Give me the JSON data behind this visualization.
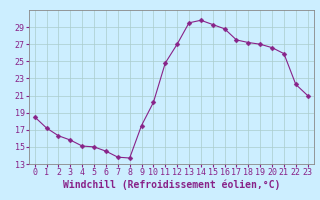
{
  "hours": [
    0,
    1,
    2,
    3,
    4,
    5,
    6,
    7,
    8,
    9,
    10,
    11,
    12,
    13,
    14,
    15,
    16,
    17,
    18,
    19,
    20,
    21,
    22,
    23
  ],
  "values": [
    18.5,
    17.2,
    16.3,
    15.8,
    15.1,
    15.0,
    14.5,
    13.8,
    13.7,
    17.5,
    20.2,
    24.8,
    27.0,
    29.5,
    29.8,
    29.3,
    28.8,
    27.5,
    27.2,
    27.0,
    26.6,
    25.9,
    22.3,
    21.0
  ],
  "line_color": "#882288",
  "marker_color": "#882288",
  "bg_color": "#cceeff",
  "grid_color": "#aacccc",
  "xlabel": "Windchill (Refroidissement éolien,°C)",
  "ylim": [
    13,
    31
  ],
  "yticks": [
    13,
    15,
    17,
    19,
    21,
    23,
    25,
    27,
    29
  ],
  "xticks": [
    0,
    1,
    2,
    3,
    4,
    5,
    6,
    7,
    8,
    9,
    10,
    11,
    12,
    13,
    14,
    15,
    16,
    17,
    18,
    19,
    20,
    21,
    22,
    23
  ],
  "xlabel_fontsize": 7,
  "tick_fontsize": 6,
  "marker_size": 2.5,
  "linewidth": 0.8
}
